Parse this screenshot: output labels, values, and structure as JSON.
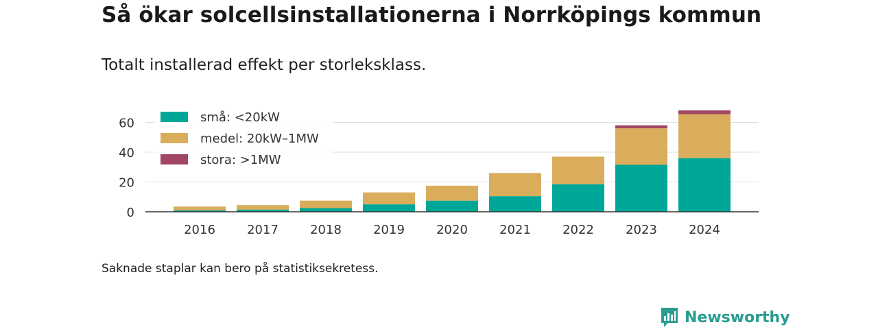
{
  "title": "Så ökar solcellsinstallationerna i Norrköpings kommun",
  "subtitle": "Totalt installerad effekt per storleksklass.",
  "note": "Saknade staplar kan bero på statistiksekretess.",
  "brand": {
    "name": "Newsworthy",
    "color": "#2a9d8f"
  },
  "chart_data": {
    "type": "bar",
    "stacked": true,
    "categories": [
      "2016",
      "2017",
      "2018",
      "2019",
      "2020",
      "2021",
      "2022",
      "2023",
      "2024"
    ],
    "series": [
      {
        "name": "små: <20kW",
        "color": "#00a697",
        "values": [
          1,
          1.5,
          2.5,
          5,
          7.5,
          10.5,
          18.5,
          31.5,
          36
        ]
      },
      {
        "name": "medel: 20kW–1MW",
        "color": "#d9ad5b",
        "values": [
          2.5,
          3,
          5,
          8,
          10,
          15.5,
          18.5,
          24.5,
          29.5
        ]
      },
      {
        "name": "stora: >1MW",
        "color": "#a14665",
        "values": [
          0,
          0,
          0,
          0,
          0,
          0,
          0,
          2,
          2.5
        ]
      }
    ],
    "yticks": [
      0,
      20,
      40,
      60
    ],
    "ylim": [
      0,
      70
    ],
    "grid": true,
    "legend_position": "top-left"
  }
}
